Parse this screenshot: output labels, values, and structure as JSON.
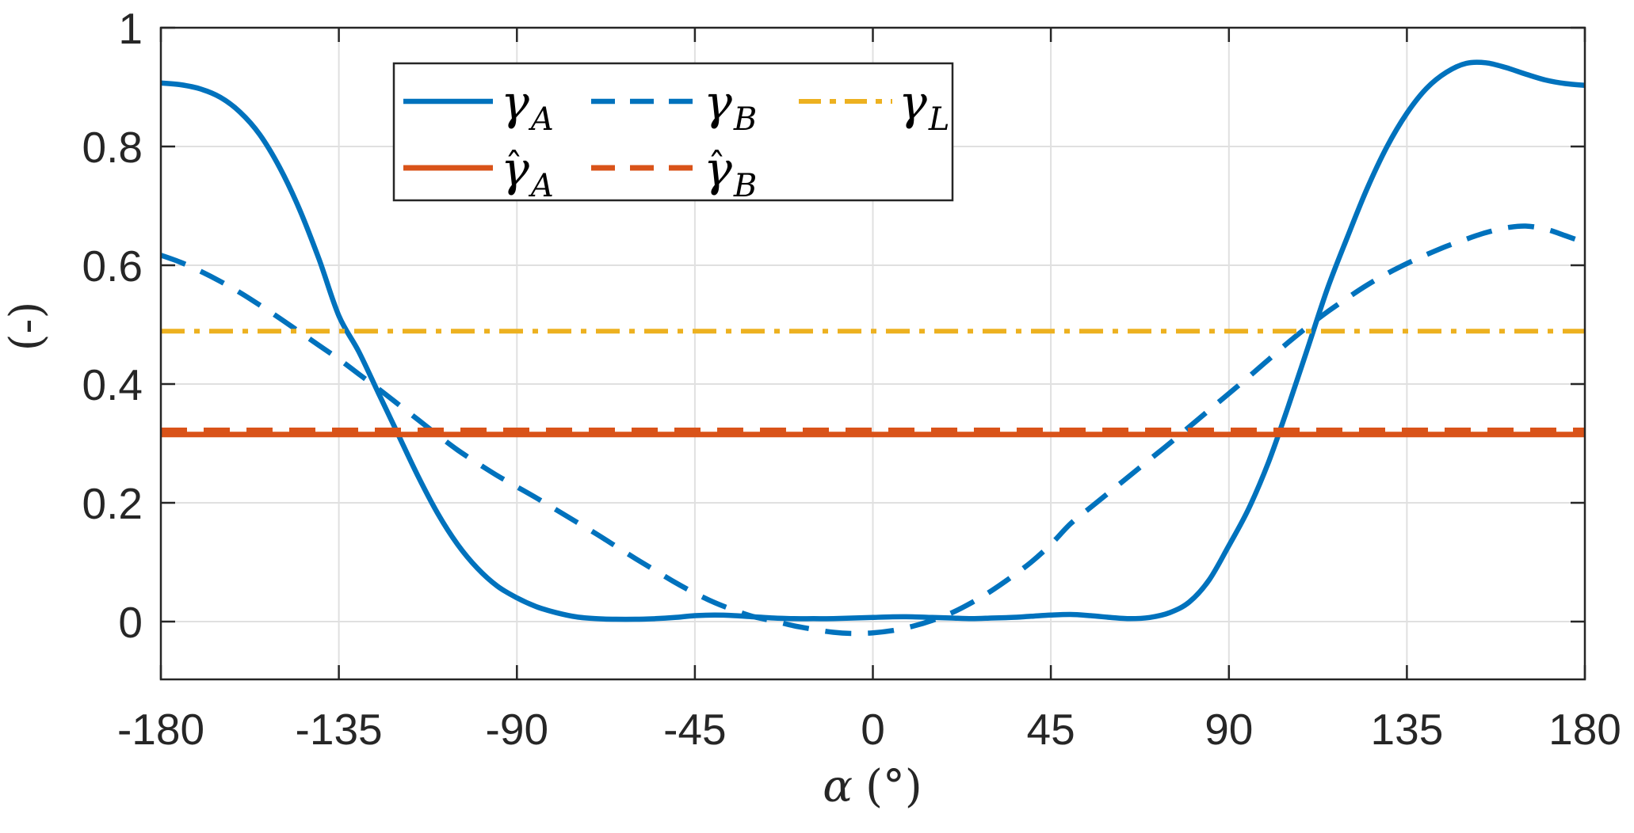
{
  "figure": {
    "ylabel": "(-)",
    "xlabel_symbol": "α",
    "xlabel_unit": "(°)",
    "xticks": [
      "-180",
      "-135",
      "-90",
      "-45",
      "0",
      "45",
      "90",
      "135",
      "180"
    ],
    "yticks": [
      "0",
      "0.2",
      "0.4",
      "0.6",
      "0.8",
      "1"
    ]
  },
  "palette": {
    "blue": "#0072BD",
    "orange": "#D95319",
    "yellow": "#EDB120",
    "axis": "#262626",
    "grid": "#E0E0E0",
    "background": "#FFFFFF"
  },
  "legend": {
    "items": [
      {
        "symbol": "γ",
        "sub": "A",
        "hat": ""
      },
      {
        "symbol": "γ",
        "sub": "B",
        "hat": ""
      },
      {
        "symbol": "γ",
        "sub": "L",
        "hat": ""
      },
      {
        "symbol": "γ",
        "sub": "A",
        "hat": "ˆ"
      },
      {
        "symbol": "γ",
        "sub": "B",
        "hat": "ˆ"
      }
    ]
  },
  "chart_data": {
    "type": "line",
    "title": "",
    "xlabel": "α (°)",
    "ylabel": "(-)",
    "xlim": [
      -180,
      180
    ],
    "ylim": [
      -0.097,
      1.0
    ],
    "grid": true,
    "legend_position": "top-center-inside",
    "x": [
      -180,
      -175,
      -170,
      -165,
      -160,
      -155,
      -150,
      -145,
      -140,
      -135,
      -130,
      -125,
      -120,
      -115,
      -110,
      -105,
      -100,
      -95,
      -90,
      -85,
      -80,
      -75,
      -70,
      -65,
      -60,
      -55,
      -50,
      -45,
      -40,
      -35,
      -30,
      -25,
      -20,
      -15,
      -10,
      -5,
      0,
      5,
      10,
      15,
      20,
      25,
      30,
      35,
      40,
      45,
      50,
      55,
      60,
      65,
      70,
      75,
      80,
      85,
      90,
      95,
      100,
      105,
      110,
      115,
      120,
      125,
      130,
      135,
      140,
      145,
      150,
      155,
      160,
      165,
      170,
      175,
      180
    ],
    "series": [
      {
        "name": "gamma_A",
        "color": "#0072BD",
        "style": "solid",
        "width": 6.5,
        "values": [
          0.907,
          0.904,
          0.897,
          0.883,
          0.858,
          0.82,
          0.765,
          0.695,
          0.61,
          0.515,
          0.455,
          0.385,
          0.315,
          0.245,
          0.182,
          0.13,
          0.09,
          0.06,
          0.04,
          0.025,
          0.015,
          0.008,
          0.005,
          0.004,
          0.004,
          0.005,
          0.007,
          0.01,
          0.011,
          0.01,
          0.008,
          0.006,
          0.005,
          0.005,
          0.005,
          0.006,
          0.007,
          0.008,
          0.008,
          0.007,
          0.006,
          0.005,
          0.006,
          0.007,
          0.009,
          0.011,
          0.012,
          0.01,
          0.007,
          0.005,
          0.007,
          0.015,
          0.033,
          0.07,
          0.128,
          0.19,
          0.268,
          0.362,
          0.462,
          0.562,
          0.648,
          0.73,
          0.8,
          0.856,
          0.898,
          0.925,
          0.94,
          0.941,
          0.933,
          0.922,
          0.912,
          0.906,
          0.903
        ]
      },
      {
        "name": "gamma_B",
        "color": "#0072BD",
        "style": "dashed",
        "width": 6.5,
        "values": [
          0.617,
          0.605,
          0.59,
          0.573,
          0.554,
          0.533,
          0.511,
          0.488,
          0.465,
          0.442,
          0.417,
          0.392,
          0.366,
          0.34,
          0.314,
          0.289,
          0.267,
          0.246,
          0.227,
          0.208,
          0.188,
          0.168,
          0.148,
          0.127,
          0.106,
          0.086,
          0.066,
          0.048,
          0.032,
          0.019,
          0.008,
          0.001,
          -0.007,
          -0.013,
          -0.018,
          -0.02,
          -0.019,
          -0.015,
          -0.008,
          0.002,
          0.015,
          0.032,
          0.052,
          0.075,
          0.1,
          0.13,
          0.165,
          0.192,
          0.219,
          0.246,
          0.273,
          0.3,
          0.328,
          0.356,
          0.384,
          0.412,
          0.441,
          0.47,
          0.497,
          0.522,
          0.545,
          0.567,
          0.586,
          0.603,
          0.618,
          0.632,
          0.644,
          0.655,
          0.663,
          0.666,
          0.661,
          0.65,
          0.638
        ]
      },
      {
        "name": "gamma_L",
        "color": "#EDB120",
        "style": "dashdot",
        "width": 6,
        "constant": 0.489
      },
      {
        "name": "gamma_hat_A",
        "color": "#D95319",
        "style": "solid",
        "width": 7,
        "constant": 0.315
      },
      {
        "name": "gamma_hat_B",
        "color": "#D95319",
        "style": "dashed",
        "width": 7,
        "constant": 0.322
      }
    ]
  }
}
